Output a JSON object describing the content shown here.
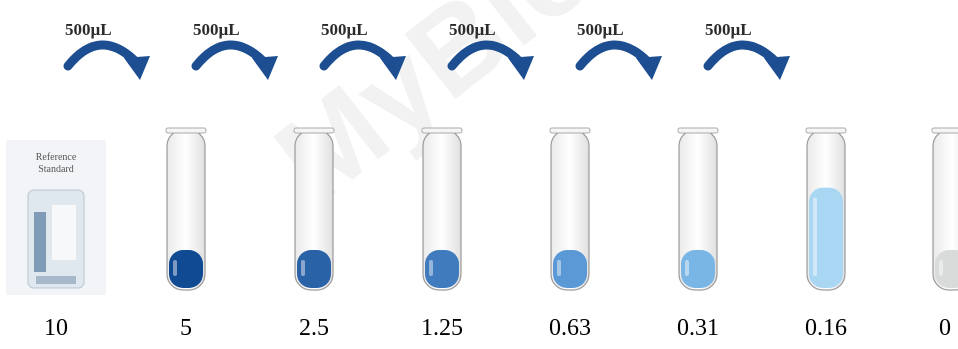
{
  "transfer_volume_label": "500µL",
  "transfers": [
    "500µL",
    "500µL",
    "500µL",
    "500µL",
    "500µL",
    "500µL"
  ],
  "reference_standard": {
    "line1": "Reference",
    "line2": "Standard"
  },
  "watermark": "MyBioSource",
  "colors": {
    "arrow": "#1c4e91",
    "tube_fills": [
      "#0f4a92",
      "#2a62a8",
      "#3f7bbd",
      "#5a99d6",
      "#79b6e6",
      "#a9d6f3",
      "#d9dada"
    ]
  },
  "tube_fill_levels": [
    0.25,
    0.25,
    0.25,
    0.25,
    0.25,
    0.64,
    0.25
  ],
  "concentrations": [
    "10",
    "5",
    "2.5",
    "1.25",
    "0.63",
    "0.31",
    "0.16",
    "0"
  ]
}
